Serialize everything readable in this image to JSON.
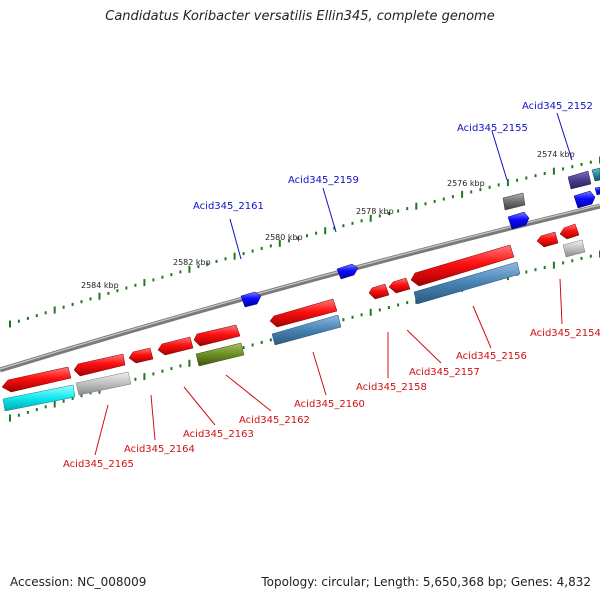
{
  "title": "Candidatus Koribacter versatilis Ellin345, complete genome",
  "kbp_labels": [
    "2584 kbp",
    "2582 kbp",
    "2580 kbp",
    "2578 kbp",
    "2576 kbp",
    "2574 kbp"
  ],
  "genes_upper": [
    "Acid345_2161",
    "Acid345_2159",
    "Acid345_2155",
    "Acid345_2152"
  ],
  "genes_lower": [
    "Acid345_2165",
    "Acid345_2164",
    "Acid345_2163",
    "Acid345_2162",
    "Acid345_2160",
    "Acid345_2158",
    "Acid345_2157",
    "Acid345_2156",
    "Acid345_2154"
  ],
  "colors": {
    "upper_label": "#1010c8",
    "lower_label": "#d01010",
    "backbone": "#888888",
    "tick": "#1f7a1f"
  },
  "footer": {
    "accession": "Accession: NC_008009",
    "summary": "Topology: circular; Length: 5,650,368 bp; Genes: 4,832"
  }
}
